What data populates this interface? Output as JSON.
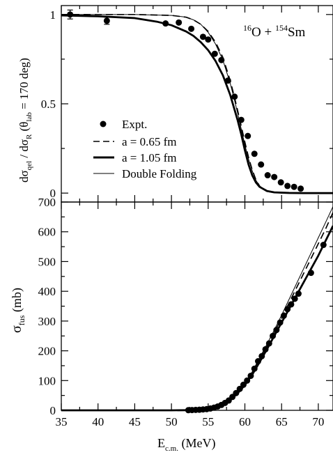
{
  "chart_data": [
    {
      "type": "line",
      "panel": "top",
      "xlim": [
        35,
        72
      ],
      "ylim": [
        -0.05,
        1.05
      ],
      "yticks": [
        0,
        0.5,
        1
      ],
      "ytick_labels": [
        "0",
        "0.5",
        "1"
      ],
      "ylabel": {
        "main": "dσ",
        "sub1": "qel",
        "mid": " / dσ",
        "sub2": "R",
        "paren_open": "  (θ",
        "sub3": "lab",
        "tail": " = 170 deg)"
      },
      "annotation": {
        "sup1": "16",
        "t1": "O + ",
        "sup2": "154",
        "t2": "Sm"
      },
      "legend": {
        "position": "middle-left",
        "entries": [
          {
            "label": "Expt.",
            "style": "marker"
          },
          {
            "label": "a = 0.65 fm",
            "style": "dashed"
          },
          {
            "label": "a = 1.05 fm",
            "style": "thick"
          },
          {
            "label": "Double Folding",
            "style": "thin"
          }
        ]
      },
      "series": [
        {
          "name": "Expt.",
          "style": "marker",
          "points": [
            {
              "x": 36.2,
              "y": 1.0,
              "err": 0.025
            },
            {
              "x": 41.2,
              "y": 0.965,
              "err": 0.02
            },
            {
              "x": 49.2,
              "y": 0.95
            },
            {
              "x": 51.0,
              "y": 0.955
            },
            {
              "x": 52.7,
              "y": 0.92
            },
            {
              "x": 54.3,
              "y": 0.875
            },
            {
              "x": 55.0,
              "y": 0.86
            },
            {
              "x": 55.9,
              "y": 0.78
            },
            {
              "x": 56.8,
              "y": 0.745
            },
            {
              "x": 57.7,
              "y": 0.63
            },
            {
              "x": 58.6,
              "y": 0.54
            },
            {
              "x": 59.5,
              "y": 0.41
            },
            {
              "x": 60.4,
              "y": 0.32
            },
            {
              "x": 61.3,
              "y": 0.22
            },
            {
              "x": 62.2,
              "y": 0.16
            },
            {
              "x": 63.1,
              "y": 0.1
            },
            {
              "x": 64.0,
              "y": 0.09
            },
            {
              "x": 64.9,
              "y": 0.06
            },
            {
              "x": 65.8,
              "y": 0.04
            },
            {
              "x": 66.7,
              "y": 0.035
            },
            {
              "x": 67.6,
              "y": 0.025
            }
          ]
        },
        {
          "name": "a = 0.65 fm",
          "style": "dashed",
          "x": [
            35,
            45,
            50,
            52,
            53,
            54,
            55,
            56,
            57,
            58,
            58.5,
            59,
            59.5,
            60,
            60.5,
            61,
            61.5,
            62,
            62.5,
            63,
            64,
            65,
            66,
            68,
            72
          ],
          "y": [
            1.0,
            1.0,
            0.995,
            0.985,
            0.97,
            0.945,
            0.905,
            0.845,
            0.76,
            0.63,
            0.55,
            0.465,
            0.375,
            0.285,
            0.2,
            0.13,
            0.075,
            0.04,
            0.02,
            0.01,
            0.003,
            0.001,
            0.0,
            0.0,
            0.0
          ]
        },
        {
          "name": "a = 1.05 fm",
          "style": "thick",
          "x": [
            35,
            40,
            45,
            48,
            50,
            52,
            53,
            54,
            55,
            56,
            57,
            58,
            59,
            59.5,
            60,
            60.5,
            61,
            61.5,
            62,
            63,
            64,
            66,
            68,
            72
          ],
          "y": [
            0.995,
            0.99,
            0.98,
            0.96,
            0.94,
            0.905,
            0.88,
            0.845,
            0.8,
            0.74,
            0.66,
            0.55,
            0.41,
            0.33,
            0.24,
            0.16,
            0.1,
            0.06,
            0.035,
            0.012,
            0.004,
            0.001,
            0.0,
            0.0
          ]
        },
        {
          "name": "Double Folding",
          "style": "thin",
          "x": [
            35,
            45,
            50,
            52,
            53,
            54,
            55,
            56,
            57,
            58,
            58.5,
            59,
            59.5,
            60,
            60.5,
            61,
            61.5,
            62,
            62.5,
            63,
            64,
            65,
            66,
            68,
            72
          ],
          "y": [
            1.0,
            1.0,
            0.995,
            0.985,
            0.97,
            0.945,
            0.9,
            0.835,
            0.745,
            0.615,
            0.535,
            0.45,
            0.36,
            0.27,
            0.19,
            0.125,
            0.072,
            0.04,
            0.02,
            0.01,
            0.003,
            0.001,
            0.0,
            0.0,
            0.0
          ]
        }
      ]
    },
    {
      "type": "line",
      "panel": "bottom",
      "xlim": [
        35,
        72
      ],
      "ylim": [
        0,
        700
      ],
      "xticks": [
        35,
        40,
        45,
        50,
        55,
        60,
        65,
        70
      ],
      "xtick_labels": [
        "35",
        "40",
        "45",
        "50",
        "55",
        "60",
        "65",
        "70"
      ],
      "yticks": [
        0,
        100,
        200,
        300,
        400,
        500,
        600,
        700
      ],
      "ytick_labels": [
        "0",
        "100",
        "200",
        "300",
        "400",
        "500",
        "600",
        "700"
      ],
      "ylabel": {
        "main": "σ",
        "sub": "fus",
        "tail": "  (mb)"
      },
      "xlabel": {
        "main": "E",
        "sub": "c.m.",
        "tail": "  (MeV)"
      },
      "series": [
        {
          "name": "Expt.",
          "style": "marker",
          "points": [
            {
              "x": 52.3,
              "y": 0.5
            },
            {
              "x": 52.8,
              "y": 1
            },
            {
              "x": 53.3,
              "y": 1.5
            },
            {
              "x": 53.8,
              "y": 2
            },
            {
              "x": 54.3,
              "y": 3
            },
            {
              "x": 54.8,
              "y": 4
            },
            {
              "x": 55.3,
              "y": 6
            },
            {
              "x": 55.8,
              "y": 9
            },
            {
              "x": 56.3,
              "y": 13
            },
            {
              "x": 56.8,
              "y": 18
            },
            {
              "x": 57.3,
              "y": 25
            },
            {
              "x": 57.8,
              "y": 33
            },
            {
              "x": 58.3,
              "y": 45
            },
            {
              "x": 58.8,
              "y": 58
            },
            {
              "x": 59.3,
              "y": 72
            },
            {
              "x": 59.8,
              "y": 86
            },
            {
              "x": 60.3,
              "y": 100
            },
            {
              "x": 60.8,
              "y": 116
            },
            {
              "x": 61.3,
              "y": 140
            },
            {
              "x": 61.8,
              "y": 165
            },
            {
              "x": 62.3,
              "y": 182
            },
            {
              "x": 62.8,
              "y": 205
            },
            {
              "x": 63.3,
              "y": 225
            },
            {
              "x": 63.8,
              "y": 250
            },
            {
              "x": 64.3,
              "y": 270
            },
            {
              "x": 64.8,
              "y": 295
            },
            {
              "x": 65.3,
              "y": 318
            },
            {
              "x": 65.8,
              "y": 340
            },
            {
              "x": 66.3,
              "y": 356
            },
            {
              "x": 66.8,
              "y": 375
            },
            {
              "x": 67.3,
              "y": 392
            },
            {
              "x": 69.0,
              "y": 462
            },
            {
              "x": 70.7,
              "y": 556
            }
          ]
        },
        {
          "name": "a = 0.65 fm",
          "style": "dashed",
          "x": [
            35,
            50,
            52,
            53,
            54,
            55,
            56,
            57,
            58,
            59,
            60,
            61,
            62,
            63,
            64,
            65,
            66,
            67,
            68,
            69,
            70,
            71,
            72
          ],
          "y": [
            0,
            0,
            0.5,
            1,
            2,
            5,
            10,
            20,
            35,
            58,
            88,
            125,
            170,
            215,
            262,
            310,
            360,
            410,
            460,
            510,
            560,
            610,
            665
          ]
        },
        {
          "name": "a = 1.05 fm",
          "style": "thick",
          "x": [
            35,
            50,
            52,
            53,
            54,
            55,
            56,
            57,
            58,
            59,
            60,
            61,
            62,
            63,
            64,
            65,
            66,
            67,
            68,
            69,
            70,
            71,
            72
          ],
          "y": [
            0,
            0,
            0.5,
            1,
            2,
            5,
            10,
            20,
            35,
            57,
            85,
            120,
            162,
            205,
            250,
            295,
            340,
            385,
            430,
            475,
            520,
            570,
            620
          ]
        },
        {
          "name": "Double Folding",
          "style": "thin",
          "x": [
            35,
            50,
            52,
            53,
            54,
            55,
            56,
            57,
            58,
            59,
            60,
            61,
            62,
            63,
            64,
            65,
            66,
            67,
            68,
            69,
            70,
            71,
            72
          ],
          "y": [
            0,
            0,
            0.5,
            1,
            2,
            5,
            11,
            21,
            37,
            60,
            92,
            130,
            176,
            222,
            270,
            320,
            372,
            424,
            476,
            528,
            580,
            632,
            685
          ]
        }
      ]
    }
  ]
}
